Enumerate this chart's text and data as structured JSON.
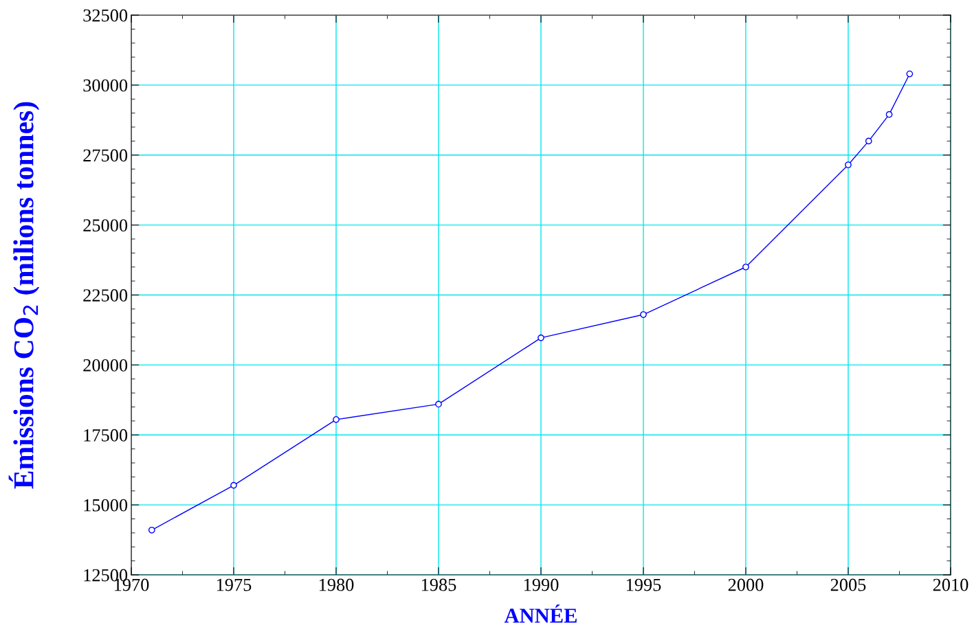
{
  "chart_data": {
    "type": "line",
    "xlabel": "ANNÉE",
    "ylabel": "Émissions CO$_{2}$ (milions tonnes)",
    "x": [
      1971,
      1975,
      1980,
      1985,
      1990,
      1995,
      2000,
      2005,
      2006,
      2007,
      2008
    ],
    "series": [
      {
        "color": "#0000ff",
        "values": [
          14100,
          15700,
          18050,
          18600,
          20970,
          21800,
          23500,
          27150,
          28000,
          28950,
          30400
        ]
      }
    ],
    "xlim": [
      1970,
      2010
    ],
    "xticks": [
      1970,
      1975,
      1980,
      1985,
      1990,
      1995,
      2000,
      2005,
      2010
    ],
    "ylim": [
      12500,
      32500
    ],
    "yticks": [
      12500,
      15000,
      17500,
      20000,
      22500,
      25000,
      27500,
      30000,
      32500
    ],
    "grid": true,
    "marker": "circle",
    "line_style": "solid",
    "legend": false
  }
}
